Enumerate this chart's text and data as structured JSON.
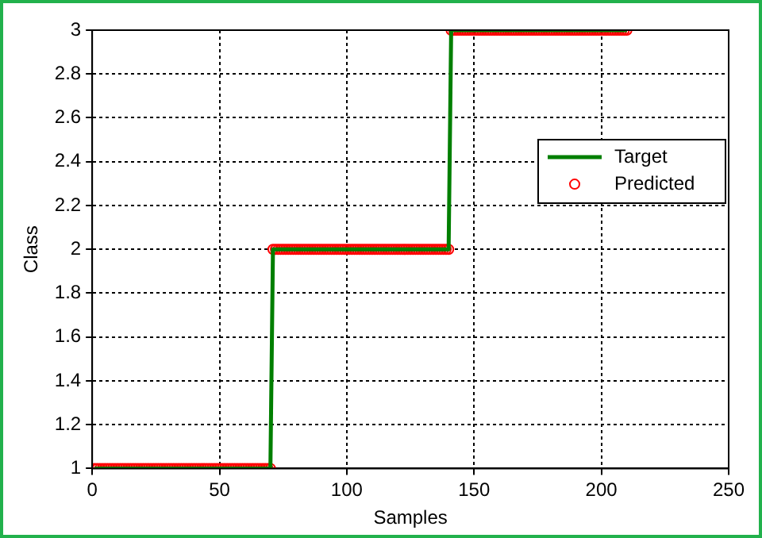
{
  "chart_data": {
    "type": "line",
    "xlabel": "Samples",
    "ylabel": "Class",
    "xlim": [
      0,
      250
    ],
    "xticks": [
      0,
      50,
      100,
      150,
      200,
      250
    ],
    "ylim": [
      1,
      3
    ],
    "yticks": [
      1,
      1.2,
      1.4,
      1.6,
      1.8,
      2,
      2.2,
      2.4,
      2.6,
      2.8,
      3
    ],
    "grid": true,
    "legend": "right",
    "series": [
      {
        "name": "Target",
        "type": "line",
        "color": "#007f00",
        "marker": "none",
        "line_style": "solid",
        "x": [
          1,
          70,
          71,
          140,
          141,
          210
        ],
        "values": [
          1,
          1,
          2,
          2,
          3,
          3
        ]
      },
      {
        "name": "Predicted",
        "type": "scatter",
        "color": "#ff0000",
        "marker": "circle",
        "x": [
          1,
          2,
          3,
          4,
          5,
          6,
          7,
          8,
          9,
          10,
          11,
          12,
          13,
          14,
          15,
          16,
          17,
          18,
          19,
          20,
          21,
          22,
          23,
          24,
          25,
          26,
          27,
          28,
          29,
          30,
          31,
          32,
          33,
          34,
          35,
          36,
          37,
          38,
          39,
          40,
          41,
          42,
          43,
          44,
          45,
          46,
          47,
          48,
          49,
          50,
          51,
          52,
          53,
          54,
          55,
          56,
          57,
          58,
          59,
          60,
          61,
          62,
          63,
          64,
          65,
          66,
          67,
          68,
          69,
          70,
          71,
          72,
          73,
          74,
          75,
          76,
          77,
          78,
          79,
          80,
          81,
          82,
          83,
          84,
          85,
          86,
          87,
          88,
          89,
          90,
          91,
          92,
          93,
          94,
          95,
          96,
          97,
          98,
          99,
          100,
          101,
          102,
          103,
          104,
          105,
          106,
          107,
          108,
          109,
          110,
          111,
          112,
          113,
          114,
          115,
          116,
          117,
          118,
          119,
          120,
          121,
          122,
          123,
          124,
          125,
          126,
          127,
          128,
          129,
          130,
          131,
          132,
          133,
          134,
          135,
          136,
          137,
          138,
          139,
          140,
          141,
          142,
          143,
          144,
          145,
          146,
          147,
          148,
          149,
          150,
          151,
          152,
          153,
          154,
          155,
          156,
          157,
          158,
          159,
          160,
          161,
          162,
          163,
          164,
          165,
          166,
          167,
          168,
          169,
          170,
          171,
          172,
          173,
          174,
          175,
          176,
          177,
          178,
          179,
          180,
          181,
          182,
          183,
          184,
          185,
          186,
          187,
          188,
          189,
          190,
          191,
          192,
          193,
          194,
          195,
          196,
          197,
          198,
          199,
          200,
          201,
          202,
          203,
          204,
          205,
          206,
          207,
          208,
          209,
          210
        ],
        "values": [
          1,
          1,
          1,
          1,
          1,
          1,
          1,
          1,
          1,
          1,
          1,
          1,
          1,
          1,
          1,
          1,
          1,
          1,
          1,
          1,
          1,
          1,
          1,
          1,
          1,
          1,
          1,
          1,
          1,
          1,
          1,
          1,
          1,
          1,
          1,
          1,
          1,
          1,
          1,
          1,
          1,
          1,
          1,
          1,
          1,
          1,
          1,
          1,
          1,
          1,
          1,
          1,
          1,
          1,
          1,
          1,
          1,
          1,
          1,
          1,
          1,
          1,
          1,
          1,
          1,
          1,
          1,
          1,
          1,
          1,
          2,
          2,
          2,
          2,
          2,
          2,
          2,
          2,
          2,
          2,
          2,
          2,
          2,
          2,
          2,
          2,
          2,
          2,
          2,
          2,
          2,
          2,
          2,
          2,
          2,
          2,
          2,
          2,
          2,
          2,
          2,
          2,
          2,
          2,
          2,
          2,
          2,
          2,
          2,
          2,
          2,
          2,
          2,
          2,
          2,
          2,
          2,
          2,
          2,
          2,
          2,
          2,
          2,
          2,
          2,
          2,
          2,
          2,
          2,
          2,
          2,
          2,
          2,
          2,
          2,
          2,
          2,
          2,
          2,
          2,
          3,
          3,
          3,
          3,
          3,
          3,
          3,
          3,
          3,
          3,
          3,
          3,
          3,
          3,
          3,
          3,
          3,
          3,
          3,
          3,
          3,
          3,
          3,
          3,
          3,
          3,
          3,
          3,
          3,
          3,
          3,
          3,
          3,
          3,
          3,
          3,
          3,
          3,
          3,
          3,
          3,
          3,
          3,
          3,
          3,
          3,
          3,
          3,
          3,
          3,
          3,
          3,
          3,
          3,
          3,
          3,
          3,
          3,
          3,
          3,
          3,
          3,
          3,
          3,
          3,
          3,
          3,
          3,
          3,
          3
        ]
      }
    ]
  }
}
